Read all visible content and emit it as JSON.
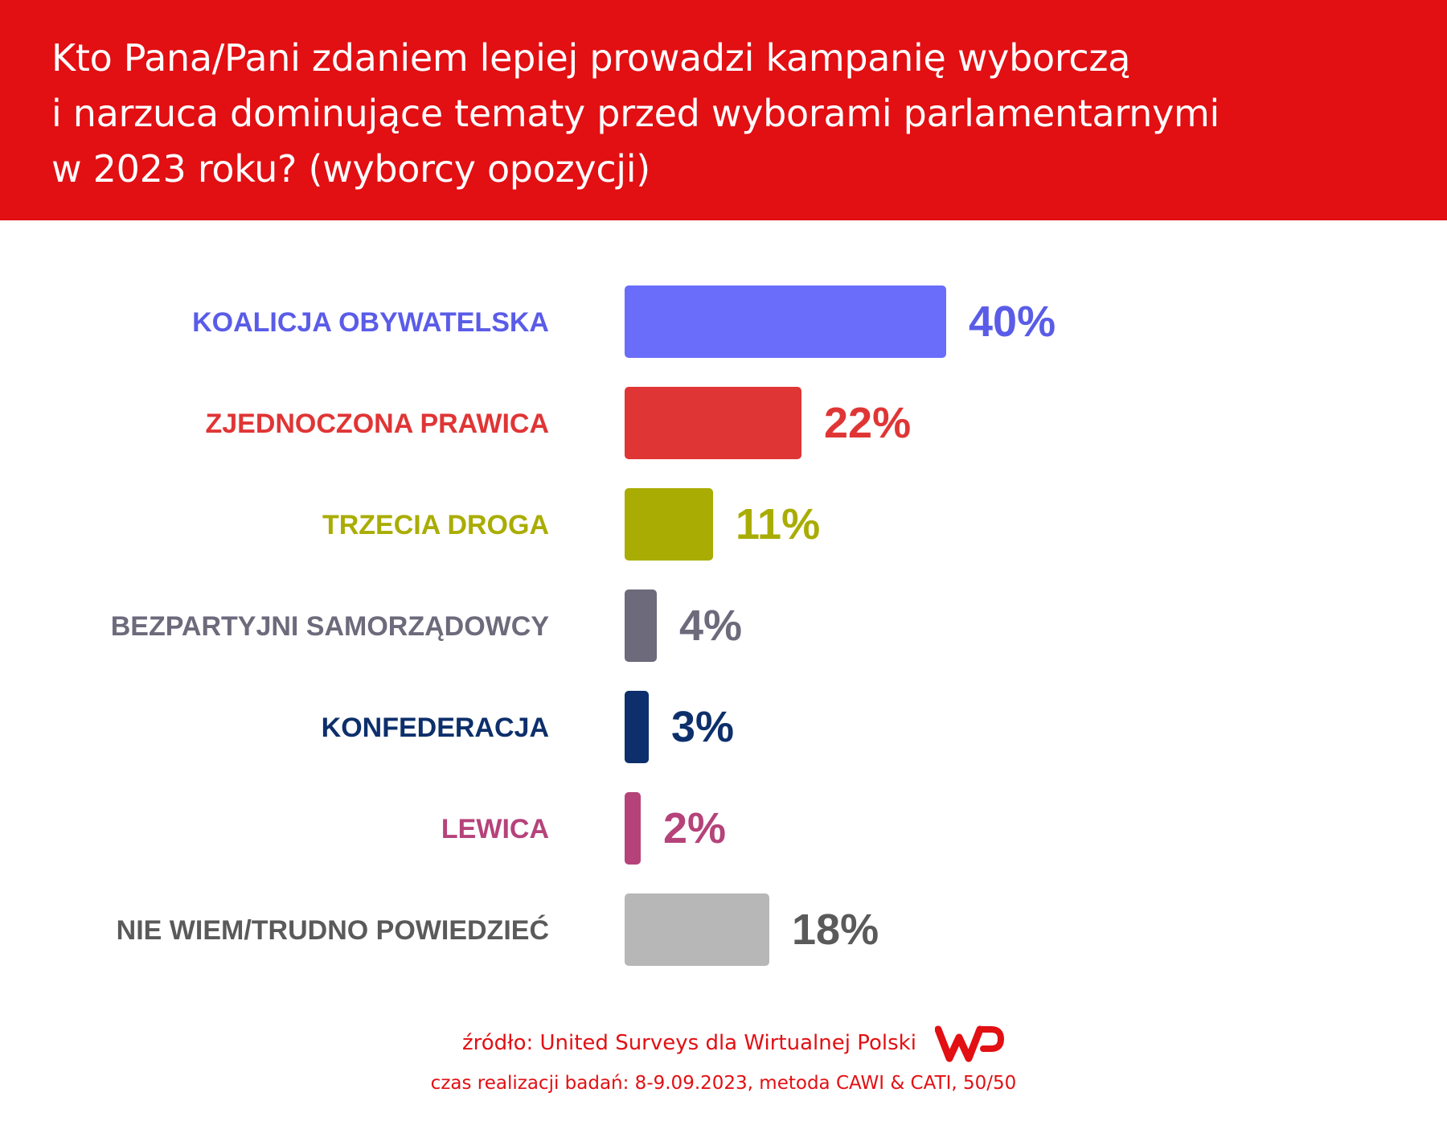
{
  "header": {
    "title_lines": [
      "Kto Pana/Pani zdaniem lepiej prowadzi kampanię wyborczą",
      "i narzuca dominujące tematy przed wyborami parlamentarnymi",
      "w 2023 roku? (wyborcy opozycji)"
    ],
    "background_color": "#e20f13"
  },
  "chart_data": {
    "type": "bar",
    "orientation": "horizontal",
    "categories": [
      "KOALICJA OBYWATELSKA",
      "ZJEDNOCZONA PRAWICA",
      "TRZECIA DROGA",
      "BEZPARTYJNI SAMORZĄDOWCY",
      "KONFEDERACJA",
      "LEWICA",
      "NIE WIEM/TRUDNO POWIEDZIEĆ"
    ],
    "values": [
      40,
      22,
      11,
      4,
      3,
      2,
      18
    ],
    "value_labels": [
      "40%",
      "22%",
      "11%",
      "4%",
      "3%",
      "2%",
      "18%"
    ],
    "bar_colors": [
      "#6a6cfa",
      "#e03535",
      "#a9ad03",
      "#6c6a7b",
      "#0d2f6b",
      "#b5437a",
      "#b7b7b7"
    ],
    "label_colors": [
      "#5a5ce8",
      "#e03535",
      "#a9ad03",
      "#6c6a7b",
      "#0d2f6b",
      "#b5437a",
      "#5a5a5a"
    ],
    "value_label_colors": [
      "#5a5ce8",
      "#e03535",
      "#a9ad03",
      "#6c6a7b",
      "#0d2f6b",
      "#b5437a",
      "#5a5a5a"
    ],
    "unit": "%",
    "grid": false,
    "axes_visible": false
  },
  "footer": {
    "source": "źródło: United Surveys dla Wirtualnej Polski",
    "method": "czas realizacji badań: 8-9.09.2023, metoda CAWI & CATI, 50/50",
    "logo_icon": "wp-logo-icon"
  }
}
